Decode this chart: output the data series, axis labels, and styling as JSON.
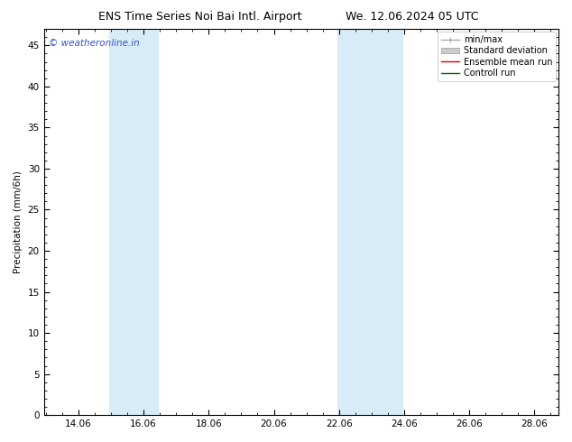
{
  "title_left": "ENS Time Series Noi Bai Intl. Airport",
  "title_right": "We. 12.06.2024 05 UTC",
  "ylabel": "Precipitation (mm/6h)",
  "watermark": "© weatheronline.in",
  "ylim": [
    0,
    47
  ],
  "yticks": [
    0,
    5,
    10,
    15,
    20,
    25,
    30,
    35,
    40,
    45
  ],
  "xlim_start": 13.0,
  "xlim_end": 28.8,
  "xtick_positions": [
    14.06,
    16.06,
    18.06,
    20.06,
    22.06,
    24.06,
    26.06,
    28.06
  ],
  "xtick_labels": [
    "14.06",
    "16.06",
    "18.06",
    "20.06",
    "22.06",
    "24.06",
    "26.06",
    "28.06"
  ],
  "shaded_bands": [
    {
      "x_start": 15.0,
      "x_end": 16.5,
      "color": "#d8ecf8"
    },
    {
      "x_start": 22.0,
      "x_end": 24.0,
      "color": "#d8ecf8"
    }
  ],
  "legend_items": [
    {
      "label": "min/max",
      "color": "#aaaaaa",
      "lw": 1.0,
      "style": "line_with_caps"
    },
    {
      "label": "Standard deviation",
      "color": "#cccccc",
      "lw": 6,
      "style": "thick"
    },
    {
      "label": "Ensemble mean run",
      "color": "#dd0000",
      "lw": 1.0,
      "style": "line"
    },
    {
      "label": "Controll run",
      "color": "#006600",
      "lw": 1.0,
      "style": "line"
    }
  ],
  "background_color": "#ffffff",
  "plot_bg_color": "#ffffff",
  "border_color": "#000000",
  "title_fontsize": 9,
  "axis_fontsize": 7.5,
  "legend_fontsize": 7,
  "watermark_color": "#3355bb",
  "watermark_fontsize": 7.5
}
